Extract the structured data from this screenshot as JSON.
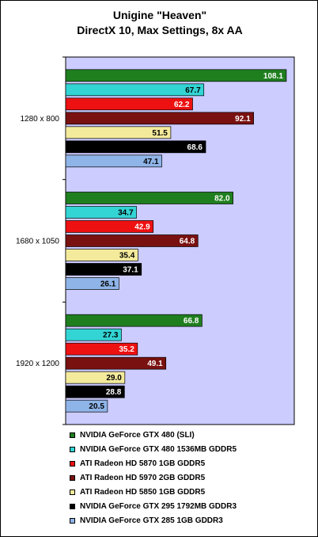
{
  "title_line1": "Unigine \"Heaven\"",
  "title_line2": "DirectX 10, Max Settings, 8x AA",
  "chart_data": {
    "type": "bar",
    "orientation": "horizontal",
    "title": "Unigine \"Heaven\" DirectX 10, Max Settings, 8x AA",
    "categories": [
      "1280 x 800",
      "1680 x 1050",
      "1920 x 1200"
    ],
    "series": [
      {
        "name": "NVIDIA GeForce GTX 480 (SLI)",
        "color": "#1f7f1f",
        "label_color": "#ffffff",
        "values": [
          108.1,
          82.0,
          66.8
        ]
      },
      {
        "name": "NVIDIA GeForce GTX 480 1536MB GDDR5",
        "color": "#33d4d4",
        "label_color": "#000000",
        "values": [
          67.7,
          34.7,
          27.3
        ]
      },
      {
        "name": "ATI Radeon HD 5870 1GB GDDR5",
        "color": "#ee1111",
        "label_color": "#ffffff",
        "values": [
          62.2,
          42.9,
          35.2
        ]
      },
      {
        "name": "ATI Radeon HD 5970 2GB GDDR5",
        "color": "#7a1111",
        "label_color": "#ffffff",
        "values": [
          92.1,
          64.8,
          49.1
        ]
      },
      {
        "name": "ATI Radeon HD 5850 1GB GDDR5",
        "color": "#f3ea9c",
        "label_color": "#000000",
        "values": [
          51.5,
          35.4,
          29.0
        ]
      },
      {
        "name": "NVIDIA GeForce GTX 295 1792MB GDDR3",
        "color": "#000000",
        "label_color": "#ffffff",
        "values": [
          68.6,
          37.1,
          28.8
        ]
      },
      {
        "name": "NVIDIA GeForce GTX 285 1GB GDDR3",
        "color": "#8fb4e8",
        "label_color": "#000000",
        "values": [
          47.1,
          26.1,
          20.5
        ]
      }
    ],
    "xlim": [
      0,
      112
    ],
    "plot_background": "#ccccff",
    "grid": false,
    "legend_placement": "bottom"
  }
}
